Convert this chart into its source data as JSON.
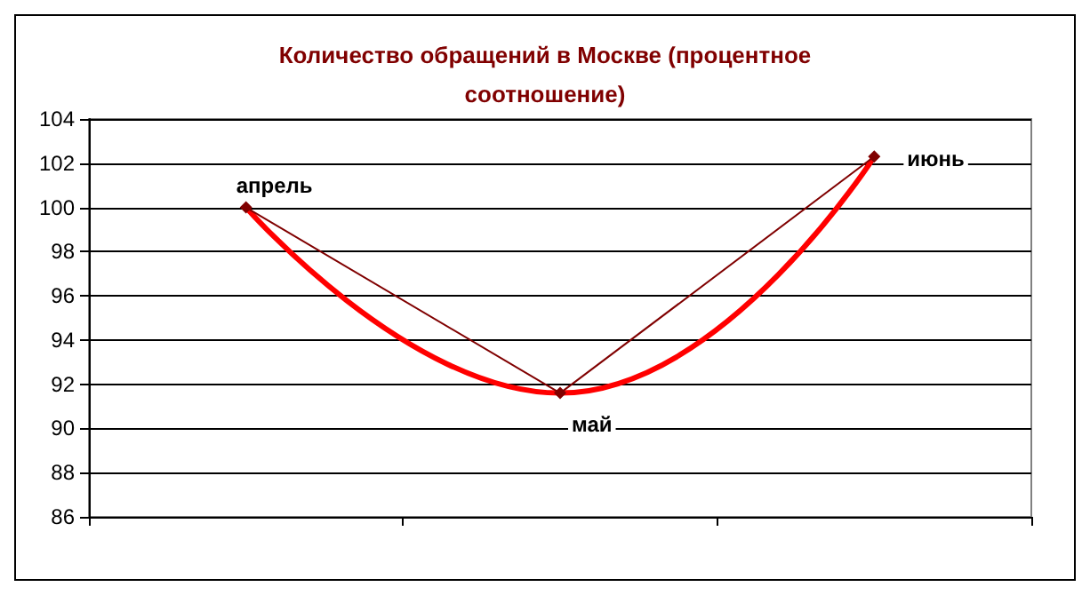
{
  "chart_data": {
    "type": "line",
    "title": "Количество обращений в Москве (процентное\nсоотношение)",
    "categories": [
      "апрель",
      "май",
      "июнь"
    ],
    "series": [
      {
        "color": "#800000",
        "values": [
          100,
          91.6,
          102.3
        ],
        "marker": "diamond",
        "line_style": "solid"
      },
      {
        "color": "#ff0000",
        "values": [
          100,
          91.6,
          102.3
        ],
        "marker": "none",
        "line_style": "solid"
      }
    ],
    "ylim": [
      86,
      104
    ],
    "yticks": [
      86,
      88,
      90,
      92,
      94,
      96,
      98,
      100,
      102,
      104
    ],
    "grid": "y",
    "tick_labels": "y"
  }
}
